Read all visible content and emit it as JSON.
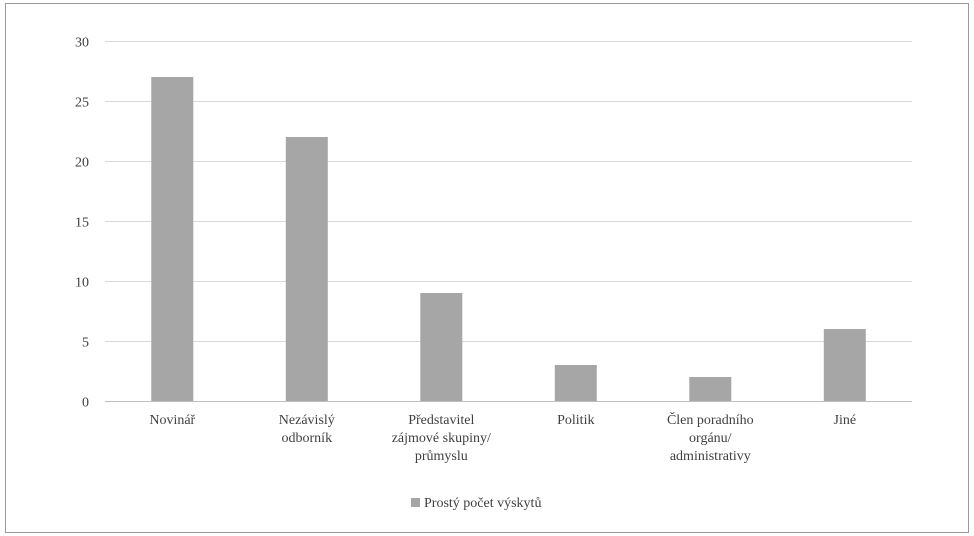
{
  "chart_data": {
    "type": "bar",
    "categories": [
      [
        "Novinář"
      ],
      [
        "Nezávislý",
        "odborník"
      ],
      [
        "Představitel",
        "zájmové skupiny/",
        "průmyslu"
      ],
      [
        "Politik"
      ],
      [
        "Člen poradního",
        "orgánu/",
        "administrativy"
      ],
      [
        "Jiné"
      ]
    ],
    "series": [
      {
        "name": "Prostý počet výskytů",
        "values": [
          27,
          22,
          9,
          3,
          2,
          6
        ],
        "color": "#a6a6a6"
      }
    ],
    "ylim": [
      0,
      30
    ],
    "yticks": [
      0,
      5,
      10,
      15,
      20,
      25,
      30
    ],
    "grid": true,
    "legend": "bottom",
    "gridColor": "#d9d9d9",
    "axisColor": "#bfbfbf"
  }
}
